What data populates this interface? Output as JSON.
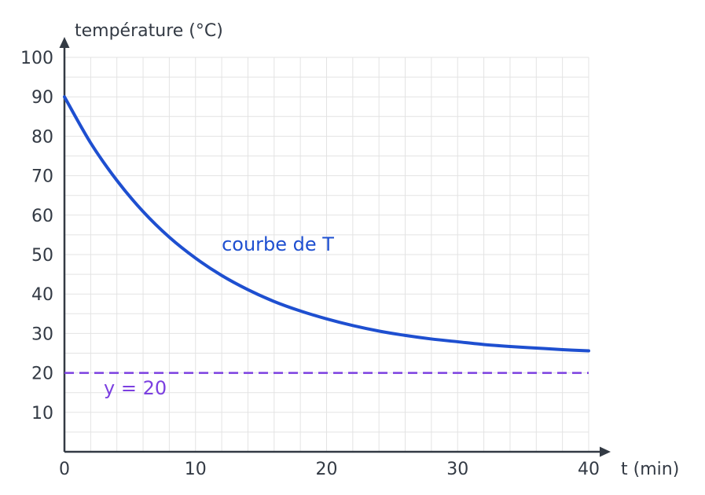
{
  "chart_data": {
    "type": "line",
    "xlabel": "t (min)",
    "ylabel": "température (°C)",
    "xlim": [
      0,
      40
    ],
    "ylim": [
      0,
      100
    ],
    "x_ticks": [
      0,
      10,
      20,
      30,
      40
    ],
    "y_ticks": [
      10,
      20,
      30,
      40,
      50,
      60,
      70,
      80,
      90,
      100
    ],
    "x_tick_labels": [
      "0",
      "10",
      "20",
      "30",
      "40"
    ],
    "y_tick_labels": [
      "10",
      "20",
      "30",
      "40",
      "50",
      "60",
      "70",
      "80",
      "90",
      "100"
    ],
    "grid": true,
    "series": [
      {
        "name": "courbe de T",
        "color": "#1e4fd0",
        "style": "solid",
        "x": [
          0,
          2,
          4,
          6,
          8,
          10,
          12,
          14,
          16,
          18,
          20,
          22,
          24,
          26,
          28,
          30,
          32,
          34,
          36,
          38,
          40
        ],
        "y": [
          90,
          78.3,
          68.8,
          60.9,
          54.4,
          49.1,
          44.7,
          41.1,
          38.1,
          35.7,
          33.7,
          32.0,
          30.6,
          29.5,
          28.6,
          27.9,
          27.2,
          26.7,
          26.3,
          25.9,
          25.6
        ]
      },
      {
        "name": "y = 20",
        "color": "#7b3fe0",
        "style": "dashed",
        "x": [
          0,
          40
        ],
        "y": [
          20,
          20
        ]
      }
    ],
    "annotations": [
      {
        "text": "courbe de T",
        "color": "#1e4fd0",
        "x": 12,
        "y": 51
      },
      {
        "text": "y = 20",
        "color": "#7b3fe0",
        "x": 3,
        "y": 14.5
      }
    ]
  }
}
